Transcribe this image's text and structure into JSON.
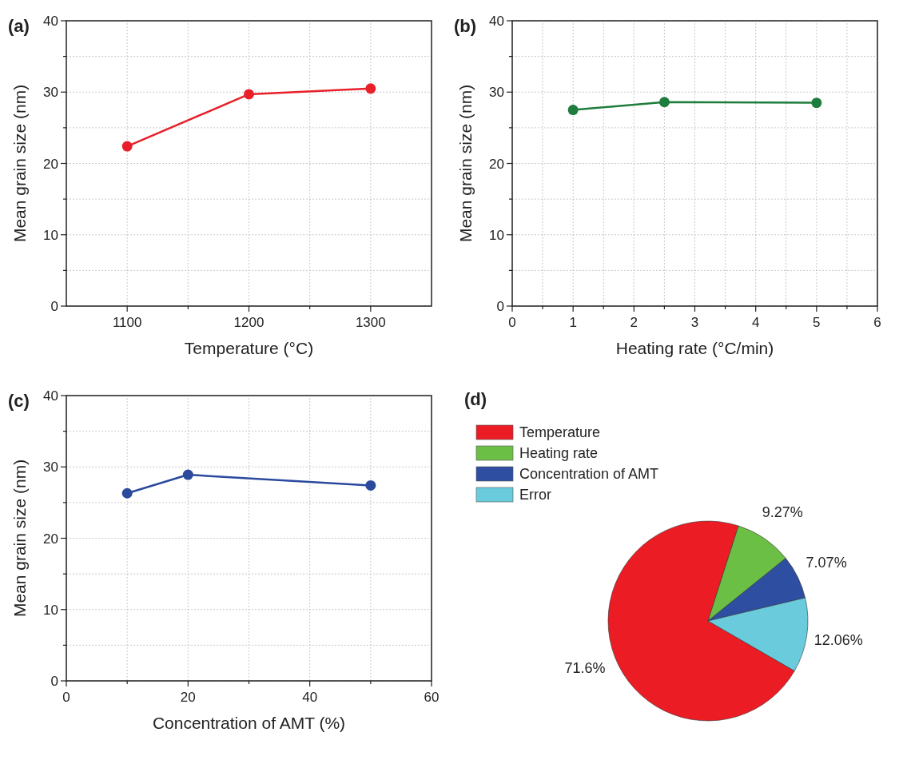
{
  "chart_data": [
    {
      "type": "line",
      "title": "(a)",
      "xlabel": "Temperature (°C)",
      "ylabel": "Mean grain size (nm)",
      "x": [
        1100,
        1200,
        1300
      ],
      "values": [
        22.4,
        29.7,
        30.5
      ],
      "color": "#e8202a",
      "marker": "circle",
      "grid": true,
      "xlim": [
        1050,
        1350
      ],
      "xticks": [
        1100,
        {
          "value": 1150,
          "label": null
        },
        1200,
        {
          "value": 1250,
          "label": null
        },
        1300
      ],
      "ylim": [
        0,
        40
      ],
      "yticks": [
        0,
        {
          "value": 5,
          "label": null
        },
        10,
        {
          "value": 15,
          "label": null
        },
        20,
        {
          "value": 25,
          "label": null
        },
        30,
        {
          "value": 35,
          "label": null
        },
        40
      ]
    },
    {
      "type": "line",
      "title": "(b)",
      "xlabel": "Heating rate (°C/min)",
      "ylabel": "Mean grain size (nm)",
      "x": [
        1,
        2.5,
        5
      ],
      "values": [
        27.5,
        28.6,
        28.5
      ],
      "color": "#1e7d3c",
      "marker": "circle",
      "grid": true,
      "xlim": [
        0,
        6
      ],
      "xticks": [
        0,
        {
          "value": 0.5,
          "label": null
        },
        1,
        {
          "value": 1.5,
          "label": null
        },
        2,
        {
          "value": 2.5,
          "label": null
        },
        3,
        {
          "value": 3.5,
          "label": null
        },
        4,
        {
          "value": 4.5,
          "label": null
        },
        5,
        {
          "value": 5.5,
          "label": null
        },
        6
      ],
      "ylim": [
        0,
        40
      ],
      "yticks": [
        0,
        {
          "value": 5,
          "label": null
        },
        10,
        {
          "value": 15,
          "label": null
        },
        20,
        {
          "value": 25,
          "label": null
        },
        30,
        {
          "value": 35,
          "label": null
        },
        40
      ]
    },
    {
      "type": "line",
      "title": "(c)",
      "xlabel": "Concentration of AMT (%)",
      "ylabel": "Mean grain size (nm)",
      "x": [
        10,
        20,
        50
      ],
      "values": [
        26.3,
        28.9,
        27.4
      ],
      "color": "#2b4a9e",
      "marker": "circle",
      "grid": true,
      "xlim": [
        0,
        60
      ],
      "xticks": [
        0,
        {
          "value": 10,
          "label": null
        },
        20,
        {
          "value": 30,
          "label": null
        },
        40,
        {
          "value": 50,
          "label": null
        },
        60
      ],
      "ylim": [
        0,
        40
      ],
      "yticks": [
        0,
        {
          "value": 5,
          "label": null
        },
        10,
        {
          "value": 15,
          "label": null
        },
        20,
        {
          "value": 25,
          "label": null
        },
        30,
        {
          "value": 35,
          "label": null
        },
        40
      ]
    },
    {
      "type": "pie",
      "title": "(d)",
      "categories": [
        "Temperature",
        "Heating rate",
        "Concentration of AMT",
        "Error"
      ],
      "values": [
        71.6,
        9.27,
        7.07,
        12.06
      ],
      "colors": [
        "#ec1c24",
        "#6cbf45",
        "#2e4ea2",
        "#69cbdc"
      ],
      "value_labels": [
        "71.6%",
        "9.27%",
        "7.07%",
        "12.06%"
      ],
      "legend": "top left"
    }
  ]
}
